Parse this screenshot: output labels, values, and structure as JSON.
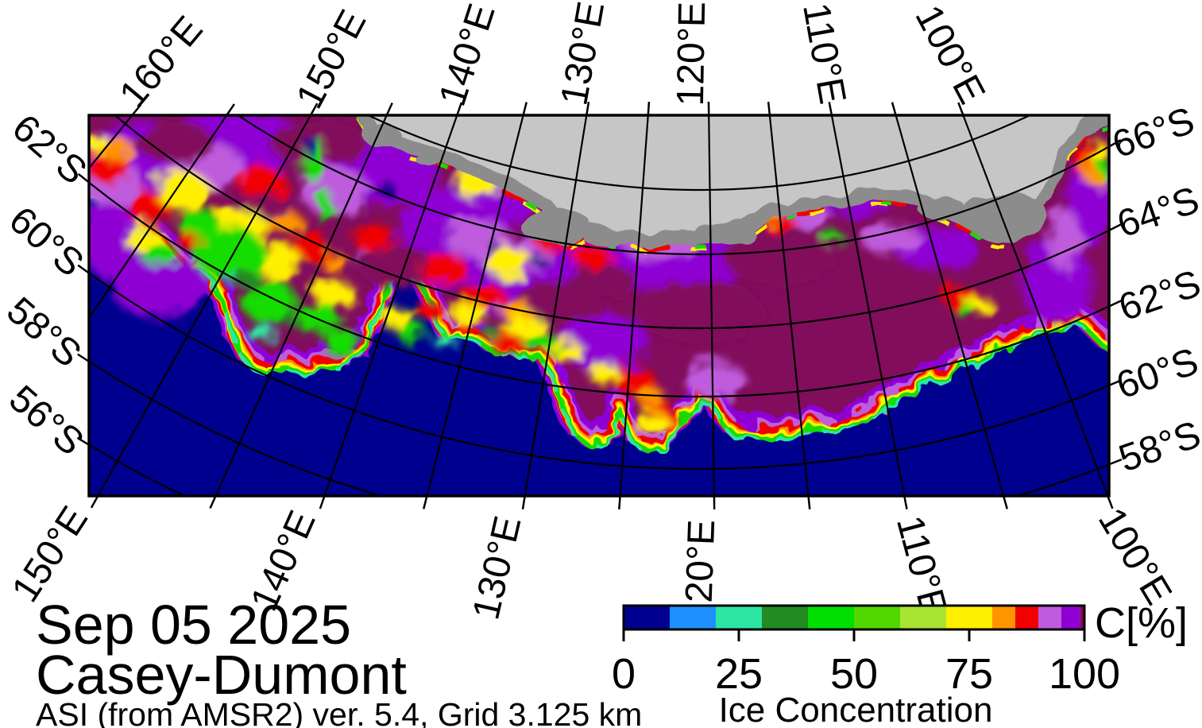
{
  "titles": {
    "date": "Sep 05 2025",
    "region": "Casey-Dumont",
    "source": "ASI (from AMSR2) ver. 5.4,  Grid 3.125 km"
  },
  "colorbar": {
    "unit_label": "C[%]",
    "axis_label": "Ice Concentration",
    "tick_labels": [
      "0",
      "25",
      "50",
      "75",
      "100"
    ],
    "tick_values": [
      0,
      25,
      50,
      75,
      100
    ],
    "range": [
      0,
      100
    ],
    "segments": [
      {
        "from": 0,
        "to": 10,
        "color": "#00008E"
      },
      {
        "from": 10,
        "to": 20,
        "color": "#1E90FF"
      },
      {
        "from": 20,
        "to": 30,
        "color": "#2EE6A4"
      },
      {
        "from": 30,
        "to": 40,
        "color": "#228B22"
      },
      {
        "from": 40,
        "to": 50,
        "color": "#00DF00"
      },
      {
        "from": 50,
        "to": 60,
        "color": "#52D800"
      },
      {
        "from": 60,
        "to": 70,
        "color": "#A9E334"
      },
      {
        "from": 70,
        "to": 80,
        "color": "#FFF000"
      },
      {
        "from": 80,
        "to": 85,
        "color": "#FF9400"
      },
      {
        "from": 85,
        "to": 90,
        "color": "#F00000"
      },
      {
        "from": 90,
        "to": 95,
        "color": "#BE5CDD"
      },
      {
        "from": 95,
        "to": 99,
        "color": "#8F00D4"
      },
      {
        "from": 99,
        "to": 100,
        "color": "#81095C"
      }
    ]
  },
  "map_axes": {
    "top": [
      "160°E",
      "150°E",
      "140°E",
      "130°E",
      "120°E",
      "110°E",
      "100°E"
    ],
    "bottom": [
      "150°E",
      "140°E",
      "130°E",
      "120°E",
      "110°E",
      "100°E"
    ],
    "left": [
      "62°S",
      "60°S",
      "58°S",
      "56°S"
    ],
    "right": [
      "66°S",
      "64°S",
      "62°S",
      "60°S",
      "58°S"
    ]
  },
  "legend": {
    "ocean_color": "#00008E",
    "land_color": "#C6C6C6",
    "coast_shelf_color": "#8C8C8C",
    "ice_pack_color": "#81095C"
  }
}
